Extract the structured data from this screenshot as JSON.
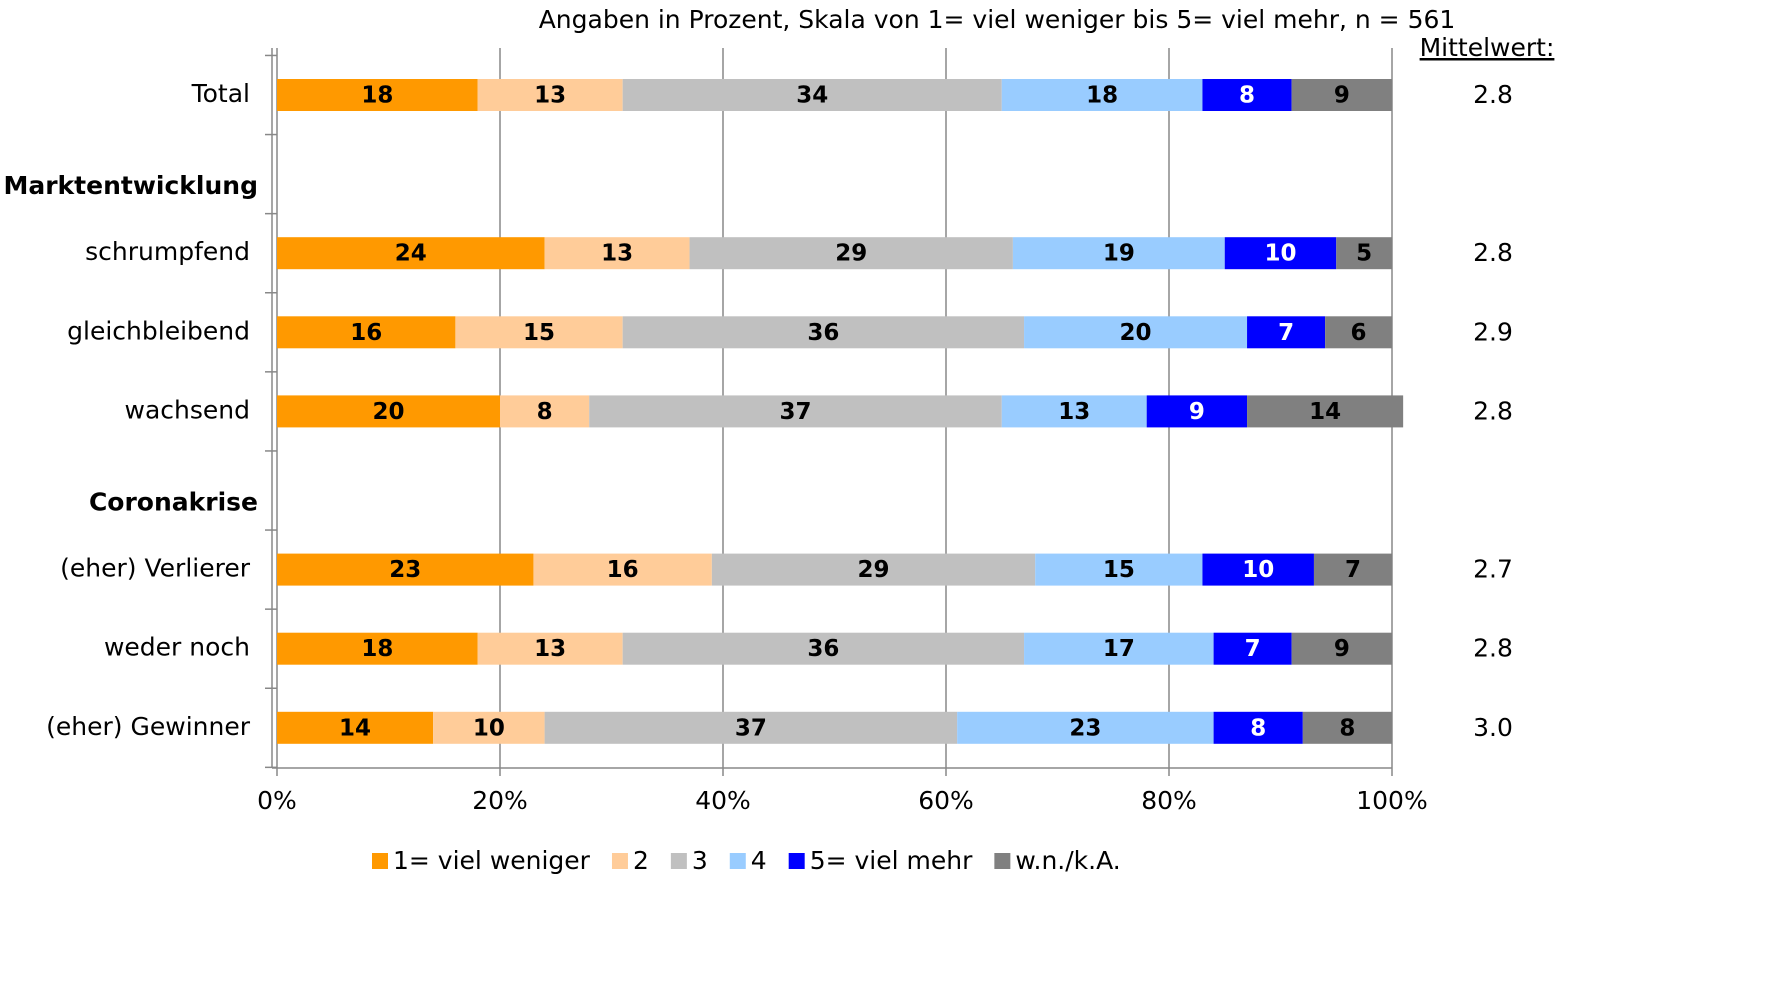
{
  "chart_data": {
    "type": "stacked_barh",
    "subtitle": "Angaben in Prozent, Skala von 1= viel weniger bis 5= viel mehr, n = 561",
    "categories": [
      "Total",
      "Marktentwicklung",
      "schrumpfend",
      "gleichbleibend",
      "wachsend",
      "Coronakrise",
      "(eher) Verlierer",
      "weder noch",
      "(eher) Gewinner"
    ],
    "series": [
      {
        "name": "1=  viel weniger",
        "color": "#ff9900",
        "label_color": "#000000",
        "values": [
          18,
          null,
          24,
          16,
          20,
          null,
          23,
          18,
          14
        ]
      },
      {
        "name": "2",
        "color": "#ffcc99",
        "label_color": "#000000",
        "values": [
          13,
          null,
          13,
          15,
          8,
          null,
          16,
          13,
          10
        ]
      },
      {
        "name": "3",
        "color": "#c0c0c0",
        "label_color": "#000000",
        "values": [
          34,
          null,
          29,
          36,
          37,
          null,
          29,
          36,
          37
        ]
      },
      {
        "name": "4",
        "color": "#99ccff",
        "label_color": "#000000",
        "values": [
          18,
          null,
          19,
          20,
          13,
          null,
          15,
          17,
          23
        ]
      },
      {
        "name": "5= viel mehr",
        "color": "#0000ff",
        "label_color": "#ffffff",
        "values": [
          8,
          null,
          10,
          7,
          9,
          null,
          10,
          7,
          8
        ]
      },
      {
        "name": "w.n./k.A.",
        "color": "#808080",
        "label_color": "#000000",
        "values": [
          9,
          null,
          5,
          6,
          14,
          null,
          7,
          9,
          8
        ]
      }
    ],
    "means": {
      "title": "Mittelwert:",
      "values": [
        2.8,
        null,
        2.8,
        2.9,
        2.8,
        null,
        2.7,
        2.8,
        3.0
      ],
      "value_labels": [
        "2.8",
        null,
        "2.8",
        "2.9",
        "2.8",
        null,
        "2.7",
        "2.8",
        "3.0"
      ]
    },
    "xlim": [
      0,
      100
    ],
    "xticks": [
      {
        "value": 0,
        "label": "0%"
      },
      {
        "value": 20,
        "label": "20%"
      },
      {
        "value": 40,
        "label": "40%"
      },
      {
        "value": 60,
        "label": "60%"
      },
      {
        "value": 80,
        "label": "80%"
      },
      {
        "value": 100,
        "label": "100%"
      }
    ],
    "grid": true,
    "legend": "bottom"
  }
}
